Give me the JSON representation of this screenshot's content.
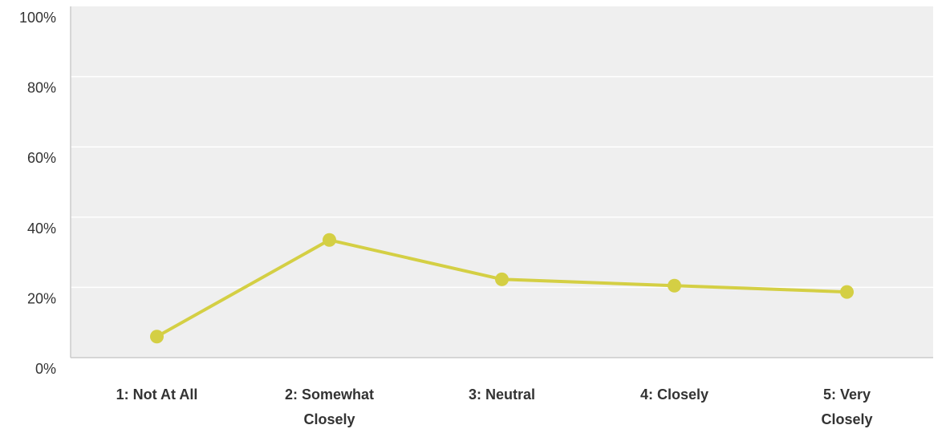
{
  "chart_data": {
    "type": "line",
    "categories": [
      [
        "1: Not At All"
      ],
      [
        "2: Somewhat",
        "Closely"
      ],
      [
        "3: Neutral"
      ],
      [
        "4: Closely"
      ],
      [
        "5: Very",
        "Closely"
      ]
    ],
    "series": [
      {
        "values": [
          6,
          33.5,
          22.3,
          20.5,
          18.7
        ],
        "color": "#d4cf44"
      }
    ],
    "ylim": [
      0,
      100
    ],
    "yticks": [
      0,
      20,
      40,
      60,
      80,
      100
    ],
    "ytick_labels": [
      "0%",
      "20%",
      "40%",
      "60%",
      "80%",
      "100%"
    ],
    "grid": true,
    "plot_background": "#efefef",
    "grid_color": "#ffffff",
    "axis_color": "#cccccc",
    "legend": "none"
  }
}
